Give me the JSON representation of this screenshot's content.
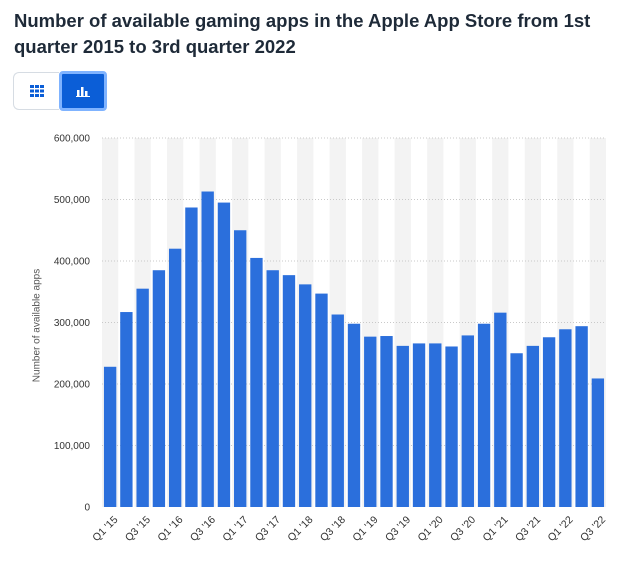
{
  "title": "Number of available gaming apps in the Apple App Store from 1st quarter 2015 to 3rd quarter 2022",
  "toolbar": {
    "table_view_icon": "table-grid-icon",
    "chart_view_icon": "bar-chart-icon",
    "active_view": "chart"
  },
  "colors": {
    "bar": "#2b6fdc",
    "band": "#f3f3f3",
    "grid": "#c9c9c9",
    "accent": "#0b5ed7"
  },
  "chart_data": {
    "type": "bar",
    "title": "Number of available gaming apps in the Apple App Store from 1st quarter 2015 to 3rd quarter 2022",
    "xlabel": "",
    "ylabel": "Number of available apps",
    "ylim": [
      0,
      600000
    ],
    "yticks": [
      0,
      100000,
      200000,
      300000,
      400000,
      500000,
      600000
    ],
    "ytick_labels": [
      "0",
      "100,000",
      "200,000",
      "300,000",
      "400,000",
      "500,000",
      "600,000"
    ],
    "grid": true,
    "categories": [
      "Q1 '15",
      "Q2 '15",
      "Q3 '15",
      "Q4 '15",
      "Q1 '16",
      "Q2 '16",
      "Q3 '16",
      "Q4 '16",
      "Q1 '17",
      "Q2 '17",
      "Q3 '17",
      "Q4 '17",
      "Q1 '18",
      "Q2 '18",
      "Q3 '18",
      "Q4 '18",
      "Q1 '19",
      "Q2 '19",
      "Q3 '19",
      "Q4 '19",
      "Q1 '20",
      "Q2 '20",
      "Q3 '20",
      "Q4 '20",
      "Q1 '21",
      "Q2 '21",
      "Q3 '21",
      "Q4 '21",
      "Q1 '22",
      "Q2 '22",
      "Q3 '22"
    ],
    "tick_labels": [
      "Q1 '15",
      "",
      "Q3 '15",
      "",
      "Q1 '16",
      "",
      "Q3 '16",
      "",
      "Q1 '17",
      "",
      "Q3 '17",
      "",
      "Q1 '18",
      "",
      "Q3 '18",
      "",
      "Q1 '19",
      "",
      "Q3 '19",
      "",
      "Q1 '20",
      "",
      "Q3 '20",
      "",
      "Q1 '21",
      "",
      "Q3 '21",
      "",
      "Q1 '22",
      "",
      "Q3 '22"
    ],
    "values": [
      228000,
      317000,
      355000,
      385000,
      420000,
      487000,
      513000,
      495000,
      450000,
      405000,
      385000,
      377000,
      362000,
      347000,
      313000,
      298000,
      277000,
      278000,
      262000,
      266000,
      266000,
      261000,
      279000,
      298000,
      316000,
      250000,
      262000,
      276000,
      289000,
      294000,
      209000
    ]
  }
}
